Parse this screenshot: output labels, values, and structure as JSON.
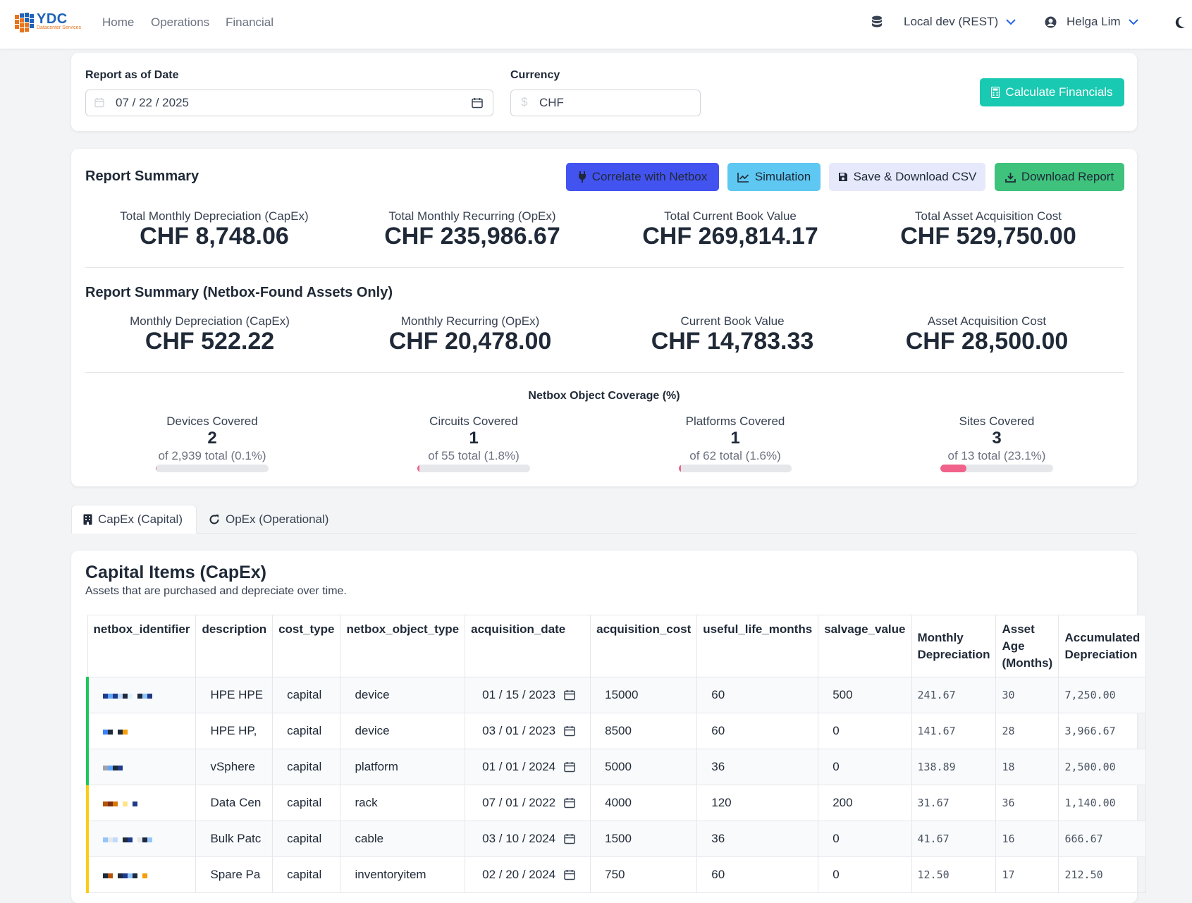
{
  "nav": {
    "brand": "YDC",
    "brand_sub": "Datacenter Services",
    "links": [
      "Home",
      "Operations",
      "Financial"
    ],
    "backend": "Local dev (REST)",
    "user": "Helga Lim"
  },
  "params": {
    "date_label": "Report as of Date",
    "date_value": "07 / 22 / 2025",
    "currency_label": "Currency",
    "currency_value": "CHF",
    "calculate_label": "Calculate Financials"
  },
  "summary": {
    "title": "Report Summary",
    "buttons": {
      "correlate": "Correlate with Netbox",
      "simulation": "Simulation",
      "save_csv": "Save & Download CSV",
      "download": "Download Report"
    },
    "stats": [
      {
        "label": "Total Monthly Depreciation (CapEx)",
        "value": "CHF 8,748.06"
      },
      {
        "label": "Total Monthly Recurring (OpEx)",
        "value": "CHF 235,986.67"
      },
      {
        "label": "Total Current Book Value",
        "value": "CHF 269,814.17"
      },
      {
        "label": "Total Asset Acquisition Cost",
        "value": "CHF 529,750.00"
      }
    ],
    "netbox_title": "Report Summary (Netbox-Found Assets Only)",
    "netbox_stats": [
      {
        "label": "Monthly Depreciation (CapEx)",
        "value": "CHF 522.22"
      },
      {
        "label": "Monthly Recurring (OpEx)",
        "value": "CHF 20,478.00"
      },
      {
        "label": "Current Book Value",
        "value": "CHF 14,783.33"
      },
      {
        "label": "Asset Acquisition Cost",
        "value": "CHF 28,500.00"
      }
    ],
    "coverage_title": "Netbox Object Coverage (%)",
    "coverage": [
      {
        "label": "Devices Covered",
        "count": "2",
        "detail": "of 2,939 total (0.1%)",
        "percent": 0.1
      },
      {
        "label": "Circuits Covered",
        "count": "1",
        "detail": "of 55 total (1.8%)",
        "percent": 1.8
      },
      {
        "label": "Platforms Covered",
        "count": "1",
        "detail": "of 62 total (1.6%)",
        "percent": 1.6
      },
      {
        "label": "Sites Covered",
        "count": "3",
        "detail": "of 13 total (23.1%)",
        "percent": 23.1
      }
    ]
  },
  "tabs": {
    "capex": "CapEx (Capital)",
    "opex": "OpEx (Operational)"
  },
  "capex": {
    "title": "Capital Items (CapEx)",
    "subtitle": "Assets that are purchased and depreciate over time.",
    "columns": [
      "netbox_identifier",
      "description",
      "cost_type",
      "netbox_object_type",
      "acquisition_date",
      "acquisition_cost",
      "useful_life_months",
      "salvage_value",
      "Monthly Depreciation",
      "Asset Age (Months)",
      "Accumulated Depreciation"
    ],
    "rows": [
      {
        "status_color": "#22c55e",
        "description": "HPE HPE",
        "cost_type": "capital",
        "object_type": "device",
        "date": "01 / 15 / 2023",
        "cost": "15000",
        "life": "60",
        "salvage": "500",
        "monthly": "241.67",
        "age": "30",
        "accum": "7,250.00"
      },
      {
        "status_color": "#22c55e",
        "description": "HPE HP,",
        "cost_type": "capital",
        "object_type": "device",
        "date": "03 / 01 / 2023",
        "cost": "8500",
        "life": "60",
        "salvage": "0",
        "monthly": "141.67",
        "age": "28",
        "accum": "3,966.67"
      },
      {
        "status_color": "#22c55e",
        "description": "vSphere",
        "cost_type": "capital",
        "object_type": "platform",
        "date": "01 / 01 / 2024",
        "cost": "5000",
        "life": "36",
        "salvage": "0",
        "monthly": "138.89",
        "age": "18",
        "accum": "2,500.00"
      },
      {
        "status_color": "#facc15",
        "description": "Data Cen",
        "cost_type": "capital",
        "object_type": "rack",
        "date": "07 / 01 / 2022",
        "cost": "4000",
        "life": "120",
        "salvage": "200",
        "monthly": "31.67",
        "age": "36",
        "accum": "1,140.00"
      },
      {
        "status_color": "#facc15",
        "description": "Bulk Patc",
        "cost_type": "capital",
        "object_type": "cable",
        "date": "03 / 10 / 2024",
        "cost": "1500",
        "life": "36",
        "salvage": "0",
        "monthly": "41.67",
        "age": "16",
        "accum": "666.67"
      },
      {
        "status_color": "#facc15",
        "description": "Spare Pa",
        "cost_type": "capital",
        "object_type": "inventoryitem",
        "date": "02 / 20 / 2024",
        "cost": "750",
        "life": "60",
        "salvage": "0",
        "monthly": "12.50",
        "age": "17",
        "accum": "212.50"
      }
    ]
  }
}
